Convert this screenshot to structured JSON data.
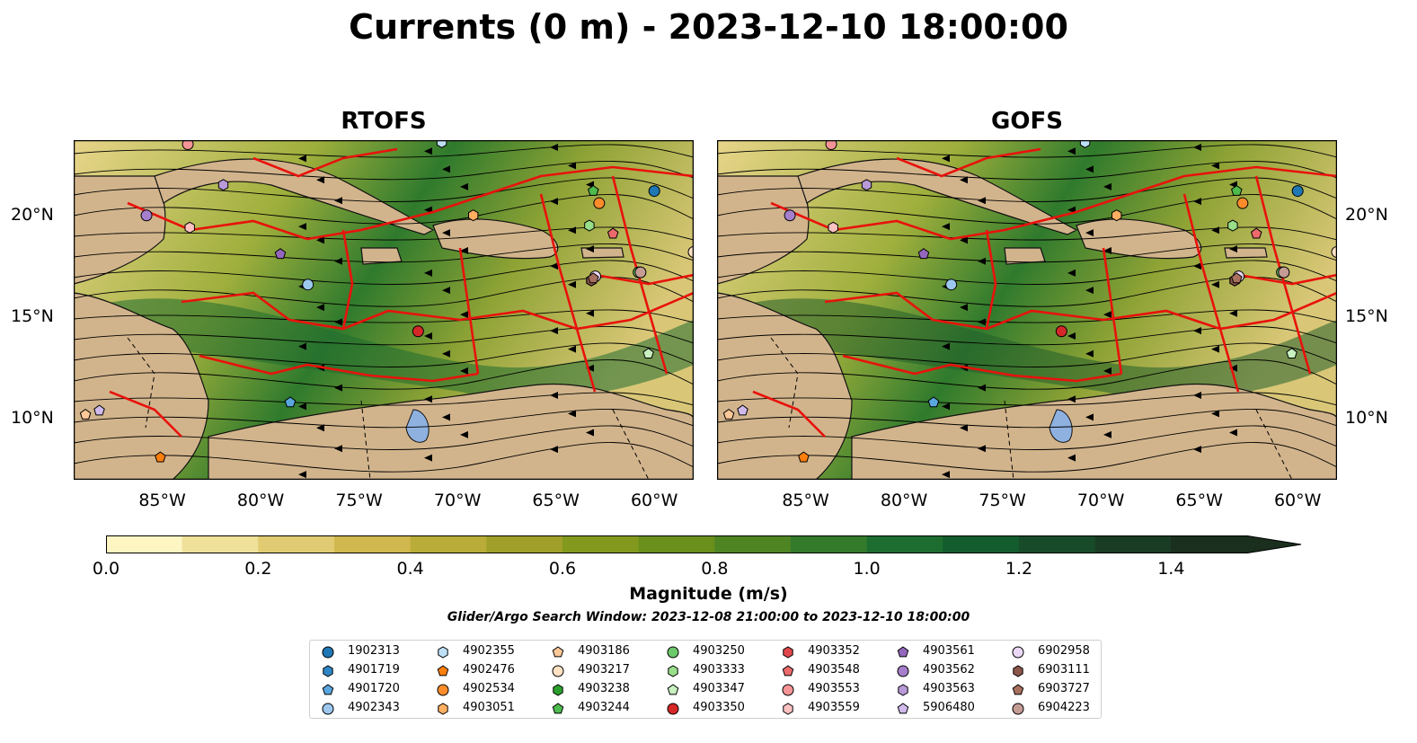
{
  "title": "Currents (0 m) - 2023-12-10 18:00:00",
  "panels": [
    {
      "title": "RTOFS"
    },
    {
      "title": "GOFS"
    }
  ],
  "axes": {
    "x_ticks": [
      "85°W",
      "80°W",
      "75°W",
      "70°W",
      "65°W",
      "60°W"
    ],
    "y_ticks": [
      "20°N",
      "15°N",
      "10°N"
    ]
  },
  "colorbar": {
    "label": "Magnitude (m/s)",
    "ticks": [
      "0.0",
      "0.2",
      "0.4",
      "0.6",
      "0.8",
      "1.0",
      "1.2",
      "1.4"
    ],
    "colors": [
      "#fdf6c3",
      "#efe09a",
      "#e0cb72",
      "#d0b84e",
      "#b9ac39",
      "#9f9f2a",
      "#82991d",
      "#6a8f1a",
      "#4f8423",
      "#347a2b",
      "#1e6d30",
      "#135c2e",
      "#174b2a",
      "#1a3c24",
      "#1a2f1e"
    ]
  },
  "search_window": "Glider/Argo Search Window: 2023-12-08 21:00:00 to 2023-12-10 18:00:00",
  "legend": [
    {
      "id": "1902313",
      "color": "#1f77b4",
      "marker": "circle"
    },
    {
      "id": "4901719",
      "color": "#2f86c6",
      "marker": "hexagon"
    },
    {
      "id": "4901720",
      "color": "#5aa7e0",
      "marker": "pentagon"
    },
    {
      "id": "4902343",
      "color": "#9cc8ee",
      "marker": "circle"
    },
    {
      "id": "4902355",
      "color": "#bde0f6",
      "marker": "hexagon"
    },
    {
      "id": "4902476",
      "color": "#ff7f0e",
      "marker": "pentagon"
    },
    {
      "id": "4902534",
      "color": "#ff8c2a",
      "marker": "circle"
    },
    {
      "id": "4903051",
      "color": "#ffae62",
      "marker": "hexagon"
    },
    {
      "id": "4903186",
      "color": "#ffc898",
      "marker": "pentagon"
    },
    {
      "id": "4903217",
      "color": "#ffe1c4",
      "marker": "circle"
    },
    {
      "id": "4903238",
      "color": "#2ca02c",
      "marker": "hexagon"
    },
    {
      "id": "4903244",
      "color": "#4dbb4d",
      "marker": "pentagon"
    },
    {
      "id": "4903250",
      "color": "#6cc96c",
      "marker": "circle"
    },
    {
      "id": "4903333",
      "color": "#98df8a",
      "marker": "hexagon"
    },
    {
      "id": "4903347",
      "color": "#c8f0c0",
      "marker": "pentagon"
    },
    {
      "id": "4903350",
      "color": "#d62728",
      "marker": "circle"
    },
    {
      "id": "4903352",
      "color": "#e0474a",
      "marker": "hexagon"
    },
    {
      "id": "4903548",
      "color": "#ec6a6c",
      "marker": "pentagon"
    },
    {
      "id": "4903553",
      "color": "#f59496",
      "marker": "circle"
    },
    {
      "id": "4903559",
      "color": "#fbc2c2",
      "marker": "hexagon"
    },
    {
      "id": "4903561",
      "color": "#9467bd",
      "marker": "pentagon"
    },
    {
      "id": "4903562",
      "color": "#a57fcc",
      "marker": "circle"
    },
    {
      "id": "4903563",
      "color": "#b89ad9",
      "marker": "hexagon"
    },
    {
      "id": "5906480",
      "color": "#d0baec",
      "marker": "pentagon"
    },
    {
      "id": "6902958",
      "color": "#ecd8f6",
      "marker": "circle"
    },
    {
      "id": "6903111",
      "color": "#8c564b",
      "marker": "hexagon"
    },
    {
      "id": "6903727",
      "color": "#a8705f",
      "marker": "pentagon"
    },
    {
      "id": "6904223",
      "color": "#c49c94",
      "marker": "circle"
    }
  ],
  "chart_data": {
    "type": "heatmap",
    "variable": "current speed",
    "units": "m/s",
    "xlim": [
      -89.5,
      -58.0
    ],
    "ylim": [
      7.0,
      23.7
    ],
    "color_range": [
      0.0,
      1.5
    ],
    "floats": [
      {
        "id": "1902313",
        "lon": -60.0,
        "lat": 21.2
      },
      {
        "id": "4901719",
        "lon": -60.7,
        "lat": 17.2
      },
      {
        "id": "4901720",
        "lon": -78.5,
        "lat": 10.8
      },
      {
        "id": "4902343",
        "lon": -77.6,
        "lat": 16.6
      },
      {
        "id": "4902355",
        "lon": -70.8,
        "lat": 23.6
      },
      {
        "id": "4902476",
        "lon": -85.1,
        "lat": 8.1
      },
      {
        "id": "4902534",
        "lon": -62.8,
        "lat": 20.6
      },
      {
        "id": "4903051",
        "lon": -69.2,
        "lat": 20.0
      },
      {
        "id": "4903186",
        "lon": -88.9,
        "lat": 10.2
      },
      {
        "id": "4903217",
        "lon": -58.0,
        "lat": 18.2
      },
      {
        "id": "4903238",
        "lon": -63.2,
        "lat": 16.8
      },
      {
        "id": "4903244",
        "lon": -63.1,
        "lat": 21.2
      },
      {
        "id": "4903250",
        "lon": -60.8,
        "lat": 17.2
      },
      {
        "id": "4903333",
        "lon": -63.3,
        "lat": 19.5
      },
      {
        "id": "4903347",
        "lon": -60.3,
        "lat": 13.2
      },
      {
        "id": "4903350",
        "lon": -72.0,
        "lat": 14.3
      },
      {
        "id": "4903352",
        "lon": -63.2,
        "lat": 16.8
      },
      {
        "id": "4903548",
        "lon": -62.1,
        "lat": 19.1
      },
      {
        "id": "4903553",
        "lon": -83.7,
        "lat": 23.5
      },
      {
        "id": "4903559",
        "lon": -83.6,
        "lat": 19.4
      },
      {
        "id": "4903561",
        "lon": -79.0,
        "lat": 18.1
      },
      {
        "id": "4903562",
        "lon": -85.8,
        "lat": 20.0
      },
      {
        "id": "4903563",
        "lon": -81.9,
        "lat": 21.5
      },
      {
        "id": "5906480",
        "lon": -88.2,
        "lat": 10.4
      },
      {
        "id": "6902958",
        "lon": -63.0,
        "lat": 17.0
      },
      {
        "id": "6903111",
        "lon": -63.2,
        "lat": 16.8
      },
      {
        "id": "6903727",
        "lon": -63.1,
        "lat": 16.9
      },
      {
        "id": "6904223",
        "lon": -60.7,
        "lat": 17.2
      }
    ]
  }
}
